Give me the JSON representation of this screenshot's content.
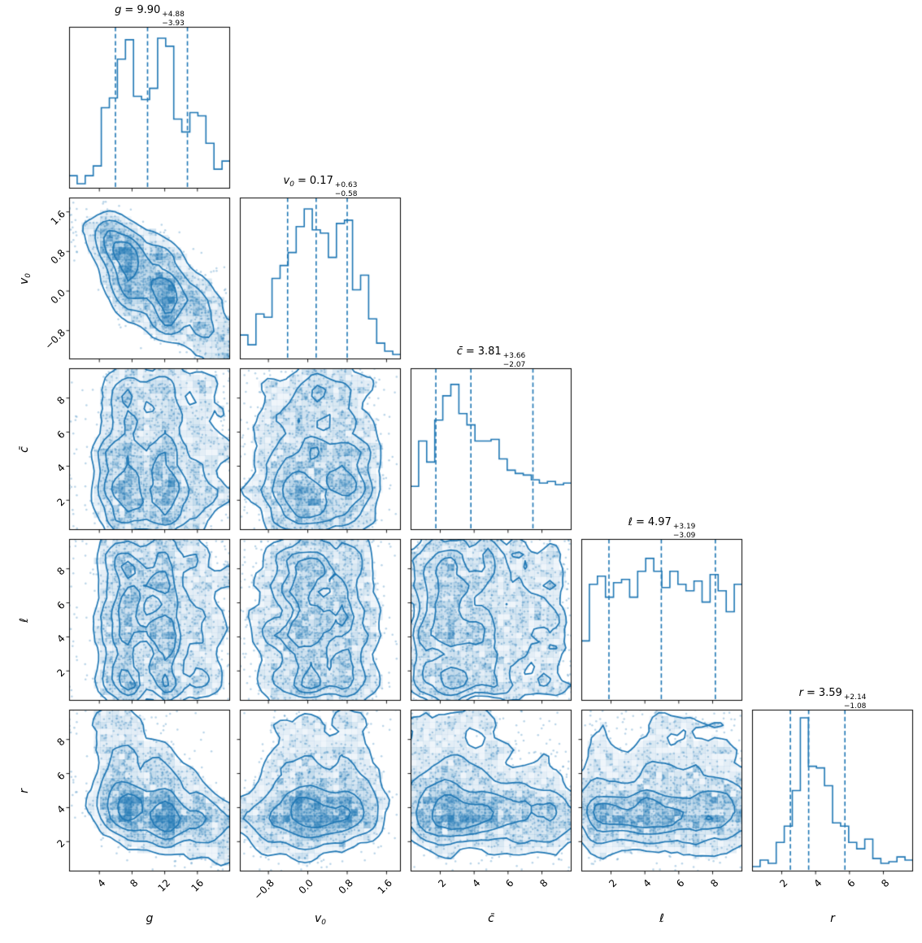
{
  "chart_data": {
    "type": "corner",
    "description": "Corner (triangle) plot of posterior samples: histograms on the diagonal with 16/50/84 percentile dashed lines, 2D contour + scatter panels below the diagonal.",
    "separator": "=",
    "colors": {
      "accent": "#1f77b4",
      "axes": "#000000",
      "background": "#ffffff"
    },
    "contour_mass_levels": [
      0.92,
      0.74,
      0.47,
      0.2
    ],
    "parameters": [
      {
        "id": "g",
        "label": "g",
        "label_sub": "",
        "range": [
          0.3,
          20.0
        ],
        "ticks": [
          4,
          8,
          12,
          16
        ],
        "tick_labels": [
          "4",
          "8",
          "12",
          "16"
        ],
        "quantiles": [
          5.97,
          9.9,
          14.78
        ],
        "title": {
          "value": "9.90",
          "plus": "+4.88",
          "minus": "−3.93"
        },
        "hist": [
          0.08,
          0.03,
          0.08,
          0.14,
          0.5,
          0.56,
          0.8,
          0.92,
          0.57,
          0.55,
          0.62,
          0.93,
          0.88,
          0.43,
          0.35,
          0.47,
          0.45,
          0.28,
          0.12,
          0.17
        ]
      },
      {
        "id": "v0",
        "label": "v",
        "label_sub": "0",
        "range": [
          -1.38,
          1.89
        ],
        "ticks": [
          -0.8,
          0.0,
          0.8,
          1.6
        ],
        "tick_labels": [
          "−0.8",
          "0.0",
          "0.8",
          "1.6"
        ],
        "quantiles": [
          -0.41,
          0.17,
          0.8
        ],
        "title": {
          "value": "0.17",
          "plus": "+0.63",
          "minus": "−0.58"
        },
        "hist": [
          0.15,
          0.09,
          0.28,
          0.26,
          0.5,
          0.58,
          0.66,
          0.82,
          0.93,
          0.8,
          0.78,
          0.63,
          0.84,
          0.86,
          0.43,
          0.52,
          0.25,
          0.1,
          0.05,
          0.03
        ]
      },
      {
        "id": "cbar",
        "label": "c̄",
        "label_sub": "",
        "range": [
          0.25,
          9.75
        ],
        "ticks": [
          2,
          4,
          6,
          8
        ],
        "tick_labels": [
          "2",
          "4",
          "6",
          "8"
        ],
        "quantiles": [
          1.74,
          3.81,
          7.47
        ],
        "title": {
          "value": "3.81",
          "plus": "+3.66",
          "minus": "−2.07"
        },
        "hist": [
          0.27,
          0.55,
          0.42,
          0.68,
          0.83,
          0.9,
          0.72,
          0.65,
          0.55,
          0.55,
          0.56,
          0.44,
          0.37,
          0.35,
          0.34,
          0.31,
          0.29,
          0.3,
          0.28,
          0.29
        ]
      },
      {
        "id": "ell",
        "label": "ℓ",
        "label_sub": "",
        "range": [
          0.25,
          9.75
        ],
        "ticks": [
          2,
          4,
          6,
          8
        ],
        "tick_labels": [
          "2",
          "4",
          "6",
          "8"
        ],
        "quantiles": [
          1.88,
          4.97,
          8.16
        ],
        "title": {
          "value": "4.97",
          "plus": "+3.19",
          "minus": "−3.09"
        },
        "hist": [
          0.37,
          0.72,
          0.77,
          0.64,
          0.73,
          0.75,
          0.64,
          0.8,
          0.88,
          0.8,
          0.7,
          0.8,
          0.72,
          0.68,
          0.74,
          0.61,
          0.78,
          0.68,
          0.55,
          0.72
        ]
      },
      {
        "id": "r",
        "label": "r",
        "label_sub": "",
        "range": [
          0.25,
          9.75
        ],
        "ticks": [
          2,
          4,
          6,
          8
        ],
        "tick_labels": [
          "2",
          "4",
          "6",
          "8"
        ],
        "quantiles": [
          2.51,
          3.59,
          5.73
        ],
        "title": {
          "value": "3.59",
          "plus": "+2.14",
          "minus": "−1.08"
        },
        "hist": [
          0.03,
          0.07,
          0.05,
          0.18,
          0.28,
          0.5,
          0.95,
          0.65,
          0.64,
          0.53,
          0.3,
          0.28,
          0.18,
          0.14,
          0.2,
          0.08,
          0.05,
          0.06,
          0.09,
          0.07
        ]
      }
    ],
    "correlations": [
      [
        1.0,
        -0.72,
        0.05,
        0.0,
        -0.42
      ],
      [
        -0.72,
        1.0,
        0.0,
        0.02,
        0.15
      ],
      [
        0.05,
        0.0,
        1.0,
        0.0,
        -0.1
      ],
      [
        0.0,
        0.02,
        0.0,
        1.0,
        0.0
      ],
      [
        -0.42,
        0.15,
        -0.1,
        0.0,
        1.0
      ]
    ]
  }
}
